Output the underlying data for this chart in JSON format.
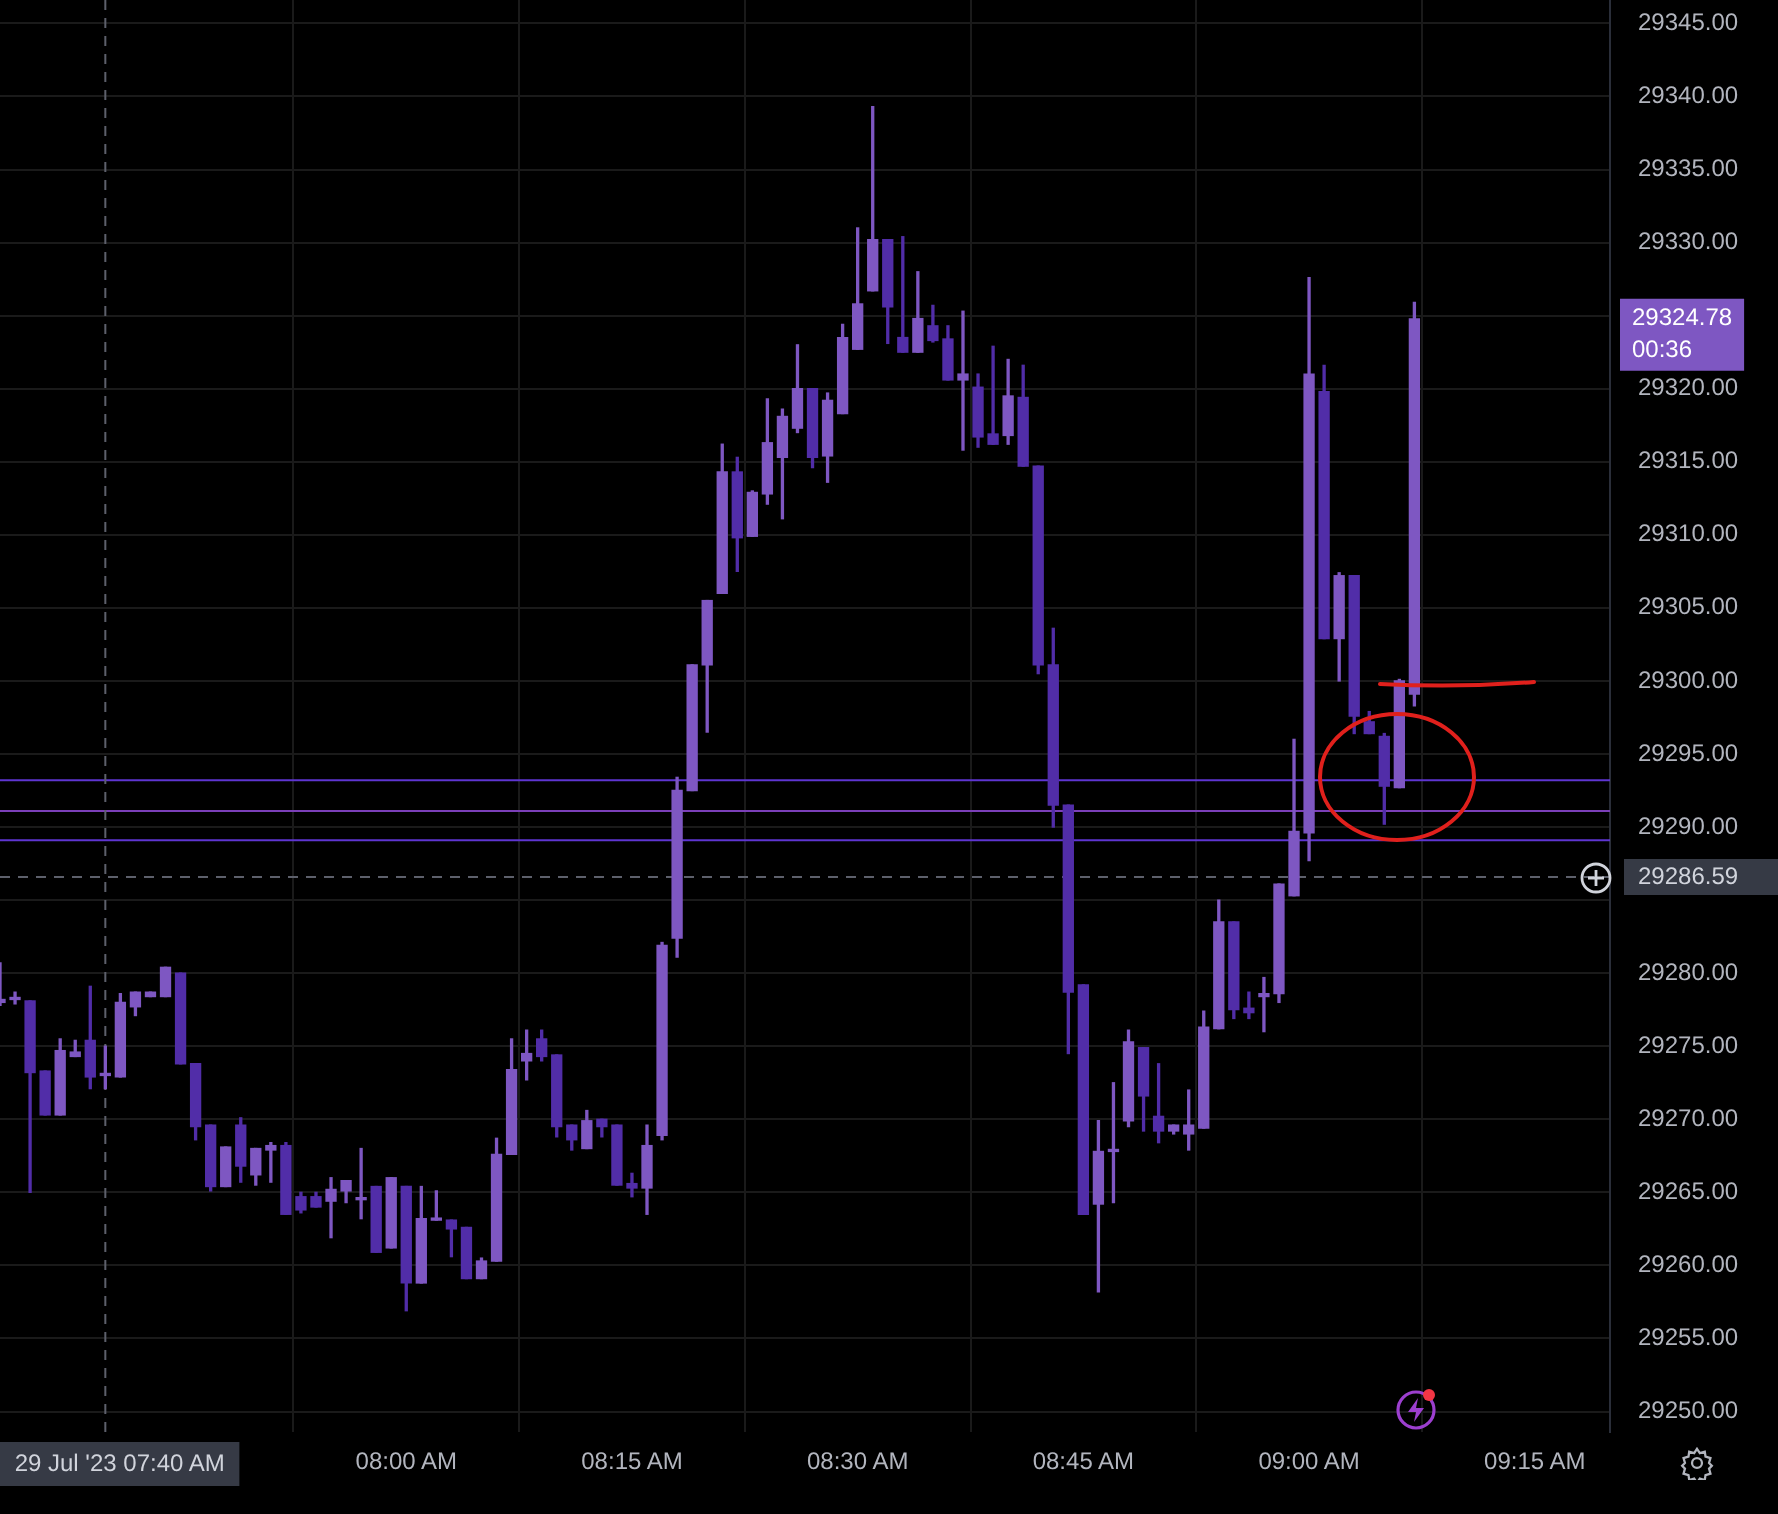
{
  "chart_data": {
    "type": "candlestick",
    "x": [
      "2023-07-29T07:33",
      "2023-07-29T07:34",
      "2023-07-29T07:35",
      "2023-07-29T07:36",
      "2023-07-29T07:37",
      "2023-07-29T07:38",
      "2023-07-29T07:39",
      "2023-07-29T07:40",
      "2023-07-29T07:41",
      "2023-07-29T07:42",
      "2023-07-29T07:43",
      "2023-07-29T07:44",
      "2023-07-29T07:45",
      "2023-07-29T07:46",
      "2023-07-29T07:47",
      "2023-07-29T07:48",
      "2023-07-29T07:49",
      "2023-07-29T07:50",
      "2023-07-29T07:51",
      "2023-07-29T07:52",
      "2023-07-29T07:53",
      "2023-07-29T07:54",
      "2023-07-29T07:55",
      "2023-07-29T07:56",
      "2023-07-29T07:57",
      "2023-07-29T07:58",
      "2023-07-29T07:59",
      "2023-07-29T08:00",
      "2023-07-29T08:01",
      "2023-07-29T08:02",
      "2023-07-29T08:03",
      "2023-07-29T08:04",
      "2023-07-29T08:05",
      "2023-07-29T08:06",
      "2023-07-29T08:07",
      "2023-07-29T08:08",
      "2023-07-29T08:09",
      "2023-07-29T08:10",
      "2023-07-29T08:11",
      "2023-07-29T08:12",
      "2023-07-29T08:13",
      "2023-07-29T08:14",
      "2023-07-29T08:15",
      "2023-07-29T08:16",
      "2023-07-29T08:17",
      "2023-07-29T08:18",
      "2023-07-29T08:19",
      "2023-07-29T08:20",
      "2023-07-29T08:21",
      "2023-07-29T08:22",
      "2023-07-29T08:23",
      "2023-07-29T08:24",
      "2023-07-29T08:25",
      "2023-07-29T08:26",
      "2023-07-29T08:27",
      "2023-07-29T08:28",
      "2023-07-29T08:29",
      "2023-07-29T08:30",
      "2023-07-29T08:31",
      "2023-07-29T08:32",
      "2023-07-29T08:33",
      "2023-07-29T08:34",
      "2023-07-29T08:35",
      "2023-07-29T08:36",
      "2023-07-29T08:37",
      "2023-07-29T08:38",
      "2023-07-29T08:39",
      "2023-07-29T08:40",
      "2023-07-29T08:41",
      "2023-07-29T08:42",
      "2023-07-29T08:43",
      "2023-07-29T08:44",
      "2023-07-29T08:45",
      "2023-07-29T08:46",
      "2023-07-29T08:47",
      "2023-07-29T08:48",
      "2023-07-29T08:49",
      "2023-07-29T08:50",
      "2023-07-29T08:51",
      "2023-07-29T08:52",
      "2023-07-29T08:53",
      "2023-07-29T08:54",
      "2023-07-29T08:55",
      "2023-07-29T08:56",
      "2023-07-29T08:57",
      "2023-07-29T08:58",
      "2023-07-29T08:59",
      "2023-07-29T09:00",
      "2023-07-29T09:01",
      "2023-07-29T09:02",
      "2023-07-29T09:03",
      "2023-07-29T09:04",
      "2023-07-29T09:05",
      "2023-07-29T09:06",
      "2023-07-29T09:07"
    ],
    "ohlc": [
      [
        29278.0,
        29280.7,
        29277.8,
        29278.2
      ],
      [
        29278.2,
        29278.7,
        29277.9,
        29278.2
      ],
      [
        29278.1,
        29278.1,
        29265.0,
        29273.2
      ],
      [
        29273.3,
        29273.3,
        29270.3,
        29270.3
      ],
      [
        29270.3,
        29275.5,
        29270.3,
        29274.7
      ],
      [
        29274.3,
        29275.4,
        29274.3,
        29274.6
      ],
      [
        29275.4,
        29279.1,
        29272.1,
        29272.9
      ],
      [
        29273.0,
        29275.0,
        29272.1,
        29273.0
      ],
      [
        29272.9,
        29278.6,
        29272.9,
        29278.0
      ],
      [
        29277.7,
        29278.7,
        29277.1,
        29278.7
      ],
      [
        29278.4,
        29278.7,
        29278.4,
        29278.7
      ],
      [
        29278.4,
        29280.4,
        29278.4,
        29280.4
      ],
      [
        29280.0,
        29280.0,
        29273.8,
        29273.8
      ],
      [
        29273.8,
        29273.8,
        29268.6,
        29269.5
      ],
      [
        29269.6,
        29269.6,
        29265.1,
        29265.4
      ],
      [
        29265.4,
        29268.1,
        29265.4,
        29268.1
      ],
      [
        29269.6,
        29270.1,
        29265.7,
        29266.8
      ],
      [
        29266.2,
        29268.0,
        29265.5,
        29268.0
      ],
      [
        29267.9,
        29268.4,
        29265.7,
        29268.2
      ],
      [
        29268.2,
        29268.4,
        29263.5,
        29263.5
      ],
      [
        29264.7,
        29265.0,
        29263.6,
        29263.8
      ],
      [
        29264.7,
        29265.0,
        29264.0,
        29264.0
      ],
      [
        29264.4,
        29266.0,
        29261.9,
        29265.2
      ],
      [
        29265.1,
        29265.8,
        29264.3,
        29265.8
      ],
      [
        29264.5,
        29268.0,
        29263.2,
        29264.5
      ],
      [
        29265.4,
        29265.4,
        29260.9,
        29260.9
      ],
      [
        29261.2,
        29266.0,
        29261.2,
        29266.0
      ],
      [
        29265.4,
        29265.4,
        29256.9,
        29258.8
      ],
      [
        29258.8,
        29265.4,
        29258.8,
        29263.2
      ],
      [
        29263.1,
        29265.1,
        29263.1,
        29263.1
      ],
      [
        29263.1,
        29263.1,
        29260.6,
        29262.5
      ],
      [
        29262.6,
        29262.6,
        29259.1,
        29259.1
      ],
      [
        29259.1,
        29260.5,
        29259.1,
        29260.3
      ],
      [
        29260.3,
        29268.7,
        29260.3,
        29267.6
      ],
      [
        29267.6,
        29275.5,
        29267.6,
        29273.4
      ],
      [
        29274.0,
        29276.1,
        29272.7,
        29274.5
      ],
      [
        29275.5,
        29276.1,
        29274.0,
        29274.3
      ],
      [
        29274.4,
        29274.4,
        29268.8,
        29269.5
      ],
      [
        29269.6,
        29269.6,
        29267.9,
        29268.6
      ],
      [
        29268.0,
        29270.6,
        29268.0,
        29269.9
      ],
      [
        29270.0,
        29270.0,
        29268.8,
        29269.5
      ],
      [
        29269.6,
        29269.6,
        29265.5,
        29265.5
      ],
      [
        29265.6,
        29266.3,
        29264.7,
        29265.3
      ],
      [
        29265.3,
        29269.6,
        29263.5,
        29268.2
      ],
      [
        29268.9,
        29282.1,
        29268.6,
        29281.9
      ],
      [
        29282.4,
        29293.4,
        29281.1,
        29292.5
      ],
      [
        29292.5,
        29301.1,
        29292.5,
        29301.1
      ],
      [
        29301.1,
        29305.5,
        29296.5,
        29305.5
      ],
      [
        29306.0,
        29316.2,
        29306.0,
        29314.3
      ],
      [
        29314.3,
        29315.3,
        29307.5,
        29309.8
      ],
      [
        29309.9,
        29313.0,
        29309.9,
        29312.9
      ],
      [
        29312.8,
        29319.3,
        29312.1,
        29316.3
      ],
      [
        29315.3,
        29318.6,
        29311.1,
        29318.1
      ],
      [
        29317.3,
        29323.0,
        29317.0,
        29320.0
      ],
      [
        29320.0,
        29320.0,
        29314.6,
        29315.3
      ],
      [
        29315.4,
        29319.7,
        29313.6,
        29319.2
      ],
      [
        29318.3,
        29324.4,
        29318.3,
        29323.5
      ],
      [
        29322.7,
        29331.0,
        29322.7,
        29325.8
      ],
      [
        29326.7,
        29339.3,
        29326.7,
        29330.2
      ],
      [
        29330.2,
        29330.2,
        29323.1,
        29325.6
      ],
      [
        29323.5,
        29330.4,
        29322.5,
        29322.5
      ],
      [
        29322.5,
        29328.0,
        29322.5,
        29324.8
      ],
      [
        29324.3,
        29325.7,
        29323.2,
        29323.3
      ],
      [
        29323.4,
        29324.3,
        29320.6,
        29320.6
      ],
      [
        29320.6,
        29325.3,
        29315.8,
        29321.0
      ],
      [
        29320.1,
        29321.0,
        29316.0,
        29316.7
      ],
      [
        29316.9,
        29322.9,
        29316.2,
        29316.2
      ],
      [
        29316.8,
        29322.0,
        29316.2,
        29319.5
      ],
      [
        29319.4,
        29321.6,
        29314.7,
        29314.7
      ],
      [
        29314.7,
        29314.7,
        29300.5,
        29301.1
      ],
      [
        29301.1,
        29303.6,
        29290.0,
        29291.5
      ],
      [
        29291.5,
        29291.5,
        29274.5,
        29278.7
      ],
      [
        29279.2,
        29279.2,
        29263.5,
        29263.5
      ],
      [
        29264.2,
        29269.9,
        29258.2,
        29267.8
      ],
      [
        29267.8,
        29272.5,
        29264.3,
        29267.8
      ],
      [
        29269.9,
        29276.1,
        29269.5,
        29275.3
      ],
      [
        29274.9,
        29274.9,
        29269.2,
        29271.6
      ],
      [
        29270.2,
        29273.8,
        29268.4,
        29269.2
      ],
      [
        29269.2,
        29269.6,
        29269.0,
        29269.6
      ],
      [
        29269.0,
        29272.0,
        29267.9,
        29269.6
      ],
      [
        29269.4,
        29277.4,
        29269.4,
        29276.3
      ],
      [
        29276.2,
        29285.0,
        29276.2,
        29283.5
      ],
      [
        29283.5,
        29283.5,
        29276.9,
        29277.5
      ],
      [
        29277.6,
        29278.7,
        29276.9,
        29277.3
      ],
      [
        29278.4,
        29279.7,
        29276.0,
        29278.6
      ],
      [
        29278.6,
        29286.1,
        29278.0,
        29286.1
      ],
      [
        29285.3,
        29296.0,
        29285.3,
        29289.7
      ],
      [
        29289.6,
        29327.6,
        29287.7,
        29321.0
      ],
      [
        29319.8,
        29321.6,
        29302.9,
        29302.9
      ],
      [
        29302.9,
        29307.4,
        29300.0,
        29307.2
      ],
      [
        29307.2,
        29307.2,
        29296.4,
        29297.6
      ],
      [
        29297.2,
        29297.9,
        29296.4,
        29296.4
      ],
      [
        29296.2,
        29296.4,
        29290.2,
        29292.8
      ],
      [
        29292.7,
        29300.1,
        29292.7,
        29300.0
      ],
      [
        29299.1,
        29325.9,
        29298.3,
        29324.78
      ]
    ],
    "colors": [
      "#7e57c2",
      "#7e57c2",
      "#512da8",
      "#512da8",
      "#7e57c2",
      "#7e57c2",
      "#512da8",
      "#7e57c2",
      "#7e57c2",
      "#7e57c2",
      "#7e57c2",
      "#7e57c2",
      "#512da8",
      "#512da8",
      "#512da8",
      "#7e57c2",
      "#512da8",
      "#7e57c2",
      "#7e57c2",
      "#512da8",
      "#512da8",
      "#512da8",
      "#7e57c2",
      "#7e57c2",
      "#7e57c2",
      "#512da8",
      "#7e57c2",
      "#512da8",
      "#7e57c2",
      "#7e57c2",
      "#512da8",
      "#512da8",
      "#7e57c2",
      "#7e57c2",
      "#7e57c2",
      "#7e57c2",
      "#512da8",
      "#512da8",
      "#512da8",
      "#7e57c2",
      "#512da8",
      "#512da8",
      "#512da8",
      "#7e57c2",
      "#7e57c2",
      "#7e57c2",
      "#7e57c2",
      "#7e57c2",
      "#7e57c2",
      "#512da8",
      "#7e57c2",
      "#7e57c2",
      "#7e57c2",
      "#7e57c2",
      "#512da8",
      "#7e57c2",
      "#7e57c2",
      "#7e57c2",
      "#7e57c2",
      "#512da8",
      "#512da8",
      "#7e57c2",
      "#512da8",
      "#512da8",
      "#7e57c2",
      "#512da8",
      "#512da8",
      "#7e57c2",
      "#512da8",
      "#512da8",
      "#512da8",
      "#512da8",
      "#512da8",
      "#7e57c2",
      "#7e57c2",
      "#7e57c2",
      "#512da8",
      "#512da8",
      "#7e57c2",
      "#7e57c2",
      "#7e57c2",
      "#7e57c2",
      "#512da8",
      "#512da8",
      "#7e57c2",
      "#7e57c2",
      "#7e57c2",
      "#7e57c2",
      "#512da8",
      "#7e57c2",
      "#512da8",
      "#512da8",
      "#512da8",
      "#7e57c2",
      "#7e57c2"
    ],
    "xlim": [
      "2023-07-29T07:33",
      "2023-07-29T09:20"
    ],
    "xticks": [
      {
        "value": "2023-07-29T08:00",
        "label": "08:00 AM"
      },
      {
        "value": "2023-07-29T08:15",
        "label": "08:15 AM"
      },
      {
        "value": "2023-07-29T08:30",
        "label": "08:30 AM"
      },
      {
        "value": "2023-07-29T08:45",
        "label": "08:45 AM"
      },
      {
        "value": "2023-07-29T09:00",
        "label": "09:00 AM"
      },
      {
        "value": "2023-07-29T09:15",
        "label": "09:15 AM"
      }
    ],
    "ylim": [
      29248.6,
      29346.6
    ],
    "yticks": [
      {
        "value": 29250,
        "label": "29250.00"
      },
      {
        "value": 29255,
        "label": "29255.00"
      },
      {
        "value": 29260,
        "label": "29260.00"
      },
      {
        "value": 29265,
        "label": "29265.00"
      },
      {
        "value": 29270,
        "label": "29270.00"
      },
      {
        "value": 29275,
        "label": "29275.00"
      },
      {
        "value": 29280,
        "label": "29280.00"
      },
      {
        "value": 29285,
        "label": null
      },
      {
        "value": 29290,
        "label": "29290.00"
      },
      {
        "value": 29295,
        "label": "29295.00"
      },
      {
        "value": 29300,
        "label": "29300.00"
      },
      {
        "value": 29305,
        "label": "29305.00"
      },
      {
        "value": 29310,
        "label": "29310.00"
      },
      {
        "value": 29315,
        "label": "29315.00"
      },
      {
        "value": 29320,
        "label": "29320.00"
      },
      {
        "value": 29325,
        "label": null
      },
      {
        "value": 29330,
        "label": "29330.00"
      },
      {
        "value": 29335,
        "label": "29335.00"
      },
      {
        "value": 29340,
        "label": "29340.00"
      },
      {
        "value": 29345,
        "label": "29345.00"
      }
    ],
    "grid": true,
    "ref_lines": [
      {
        "axis": "y",
        "value": 29293.2,
        "color": "#5e35d1"
      },
      {
        "axis": "y",
        "value": 29291.1,
        "color": "#7b3fb8"
      },
      {
        "axis": "y",
        "value": 29289.1,
        "color": "#5e35d1"
      },
      {
        "axis": "y",
        "value": 29286.59,
        "label": "29286.59",
        "color": "#5d606b",
        "line_style": "dashed"
      },
      {
        "axis": "x",
        "value": "2023-07-29T07:40",
        "label": "29 Jul '23 07:40 AM",
        "color": "#5d606b",
        "line_style": "dashed"
      }
    ],
    "annotations": [
      "29324.78",
      "00:36"
    ]
  }
}
